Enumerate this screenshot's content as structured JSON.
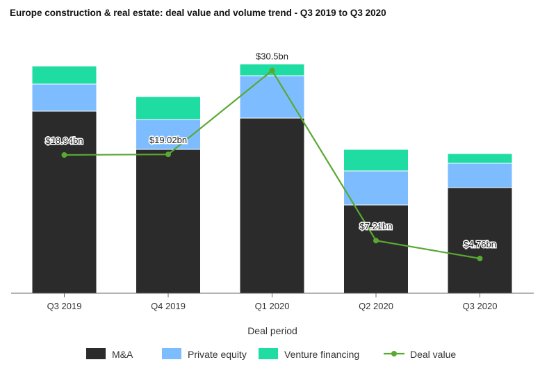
{
  "chart_data": {
    "type": "bar",
    "title": "Europe construction & real estate: deal value and volume trend - Q3 2019 to Q3 2020",
    "xlabel": "Deal period",
    "ylabel": "",
    "categories": [
      "Q3 2019",
      "Q4 2019",
      "Q1 2020",
      "Q2 2020",
      "Q3 2020"
    ],
    "stacked": true,
    "bar_ylim": [
      0,
      332
    ],
    "series": [
      {
        "name": "M&A",
        "type": "bar",
        "color": "#2b2b2b",
        "values": [
          262,
          207,
          252,
          127,
          152
        ]
      },
      {
        "name": "Private equity",
        "type": "bar",
        "color": "#7dbdff",
        "values": [
          39,
          43,
          61,
          49,
          35
        ]
      },
      {
        "name": "Venture financing",
        "type": "bar",
        "color": "#1fdca3",
        "values": [
          26,
          33,
          17,
          31,
          14
        ]
      },
      {
        "name": "Deal value",
        "type": "line",
        "color": "#5aa832",
        "values": [
          18.94,
          19.02,
          30.5,
          7.21,
          4.76
        ],
        "labels": [
          "$18.94bn",
          "$19.02bn",
          "$30.5bn",
          "$7.21bn",
          "$4.76bn"
        ]
      }
    ],
    "line_ylim": [
      0,
      31.6
    ],
    "grid": false,
    "legend_position": "bottom"
  }
}
